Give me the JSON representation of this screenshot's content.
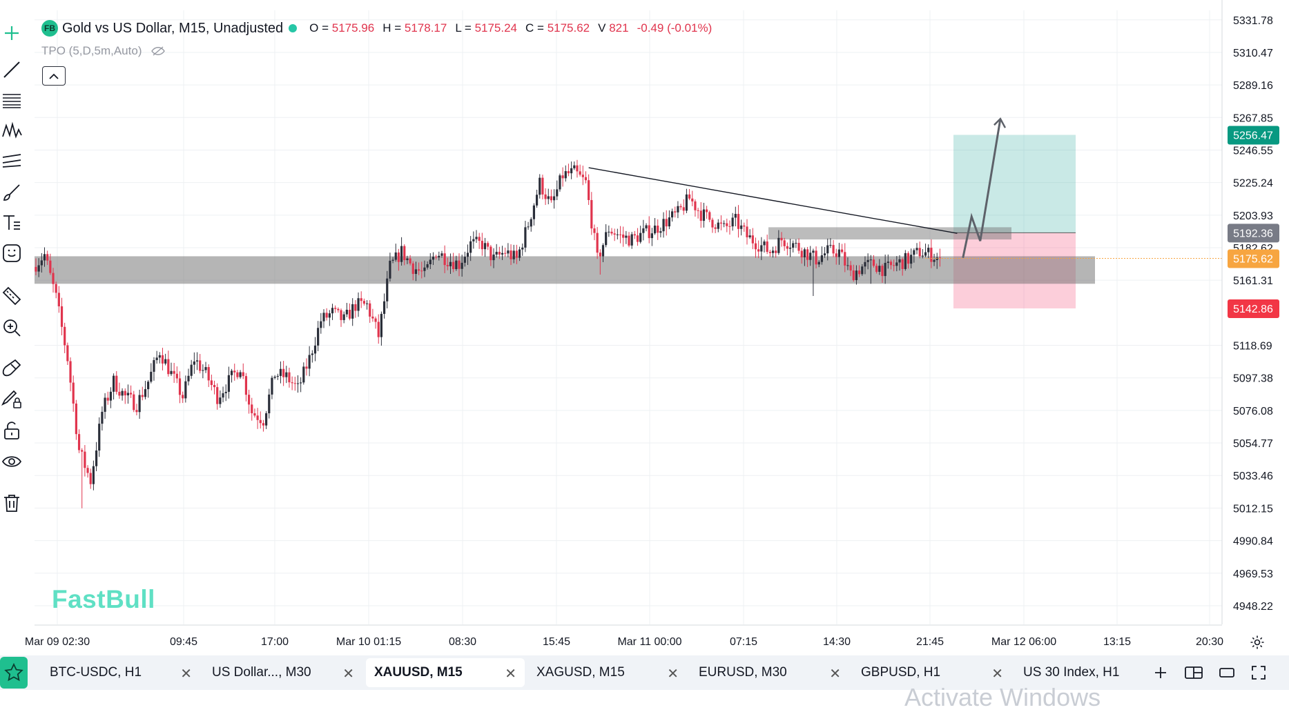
{
  "header": {
    "logo_text": "FB",
    "title": "Gold vs US Dollar, M15, Unadjusted",
    "ohlc": [
      {
        "key": "O =",
        "value": "5175.96"
      },
      {
        "key": "H =",
        "value": "5178.17"
      },
      {
        "key": "L =",
        "value": "5175.24"
      },
      {
        "key": "C =",
        "value": "5175.62"
      },
      {
        "key": "V",
        "value": "821"
      }
    ],
    "change": "-0.49 (-0.01%)",
    "indicator": "TPO (5,D,5m,Auto)"
  },
  "watermark": "FastBull",
  "overlay_text": "Activate Windows",
  "colors": {
    "up": "#2a2e39",
    "down": "#e0344d",
    "target_zone": "#26a69a",
    "stop_zone": "#f23c6a",
    "current_price": "#f7a540",
    "target_label": "#089981",
    "stop_label": "#f23645",
    "entry_label": "#787b86"
  },
  "chart_data": {
    "type": "candlestick",
    "symbol": "XAUUSD",
    "timeframe": "M15",
    "y_ticks": [
      "5331.78",
      "5310.47",
      "5289.16",
      "5267.85",
      "5246.55",
      "5225.24",
      "5203.93",
      "5182.62",
      "5161.31",
      "5118.69",
      "5097.38",
      "5076.08",
      "5054.77",
      "5033.46",
      "5012.15",
      "4990.84",
      "4969.53",
      "4948.22"
    ],
    "ylim": [
      4936,
      5338
    ],
    "x_ticks": [
      "Mar 09 02:30",
      "09:45",
      "17:00",
      "Mar 10 01:15",
      "08:30",
      "15:45",
      "Mar 11 00:00",
      "07:15",
      "14:30",
      "21:45",
      "Mar 12 06:00",
      "13:15",
      "20:30"
    ],
    "price_labels": [
      {
        "name": "target",
        "value": "5256.47"
      },
      {
        "name": "entry",
        "value": "5192.36"
      },
      {
        "name": "current",
        "value": "5175.62"
      },
      {
        "name": "stop",
        "value": "5142.86"
      }
    ],
    "price_path_anchors": [
      [
        0,
        5170
      ],
      [
        4,
        5178
      ],
      [
        8,
        5150
      ],
      [
        12,
        5110
      ],
      [
        16,
        5050
      ],
      [
        20,
        5030
      ],
      [
        24,
        5075
      ],
      [
        28,
        5095
      ],
      [
        32,
        5085
      ],
      [
        36,
        5080
      ],
      [
        40,
        5095
      ],
      [
        44,
        5115
      ],
      [
        48,
        5100
      ],
      [
        52,
        5085
      ],
      [
        56,
        5110
      ],
      [
        60,
        5100
      ],
      [
        64,
        5085
      ],
      [
        68,
        5095
      ],
      [
        72,
        5105
      ],
      [
        76,
        5075
      ],
      [
        80,
        5070
      ],
      [
        84,
        5100
      ],
      [
        88,
        5098
      ],
      [
        92,
        5090
      ],
      [
        96,
        5110
      ],
      [
        100,
        5135
      ],
      [
        104,
        5140
      ],
      [
        108,
        5135
      ],
      [
        112,
        5145
      ],
      [
        116,
        5145
      ],
      [
        120,
        5125
      ],
      [
        124,
        5170
      ],
      [
        128,
        5180
      ],
      [
        132,
        5170
      ],
      [
        136,
        5165
      ],
      [
        140,
        5180
      ],
      [
        144,
        5175
      ],
      [
        148,
        5172
      ],
      [
        152,
        5185
      ],
      [
        156,
        5185
      ],
      [
        160,
        5175
      ],
      [
        164,
        5180
      ],
      [
        168,
        5175
      ],
      [
        172,
        5198
      ],
      [
        176,
        5225
      ],
      [
        180,
        5210
      ],
      [
        184,
        5230
      ],
      [
        188,
        5232
      ],
      [
        192,
        5225
      ],
      [
        196,
        5175
      ],
      [
        200,
        5195
      ],
      [
        204,
        5190
      ],
      [
        208,
        5188
      ],
      [
        212,
        5192
      ],
      [
        216,
        5195
      ],
      [
        220,
        5200
      ],
      [
        224,
        5205
      ],
      [
        228,
        5215
      ],
      [
        232,
        5205
      ],
      [
        236,
        5200
      ],
      [
        240,
        5195
      ],
      [
        244,
        5200
      ],
      [
        248,
        5190
      ],
      [
        252,
        5185
      ],
      [
        256,
        5180
      ],
      [
        260,
        5188
      ],
      [
        264,
        5185
      ],
      [
        268,
        5180
      ],
      [
        272,
        5175
      ],
      [
        276,
        5180
      ],
      [
        280,
        5180
      ],
      [
        284,
        5165
      ],
      [
        288,
        5170
      ],
      [
        292,
        5172
      ],
      [
        296,
        5168
      ],
      [
        300,
        5172
      ],
      [
        304,
        5175
      ],
      [
        308,
        5180
      ],
      [
        312,
        5178
      ],
      [
        314,
        5176
      ]
    ],
    "special_wicks": [
      {
        "index": 16,
        "low": 5012
      },
      {
        "index": 196,
        "low": 5165
      },
      {
        "index": 270,
        "low": 5151
      },
      {
        "index": 290,
        "low": 5159
      }
    ],
    "zones": [
      {
        "name": "support",
        "y_top": 5177,
        "y_bottom": 5159
      },
      {
        "name": "resistance",
        "y_top": 5196,
        "y_bottom": 5188
      },
      {
        "name": "target",
        "y_top": 5256.47,
        "y_bottom": 5192.36
      },
      {
        "name": "stop",
        "y_top": 5192.36,
        "y_bottom": 5142.86
      }
    ],
    "trendline": {
      "from_index": 192,
      "from_price": 5235,
      "to_index": 320,
      "to_price": 5192
    },
    "projection": [
      [
        322,
        5176
      ],
      [
        325,
        5203
      ],
      [
        328,
        5187
      ],
      [
        335,
        5267
      ]
    ],
    "grid": true
  },
  "tabs": [
    {
      "label": "BTC-USDC, H1",
      "active": false
    },
    {
      "label": "US Dollar..., M30",
      "active": false
    },
    {
      "label": "XAUUSD, M15",
      "active": true
    },
    {
      "label": "XAGUSD, M15",
      "active": false
    },
    {
      "label": "EURUSD, M30",
      "active": false
    },
    {
      "label": "GBPUSD, H1",
      "active": false
    },
    {
      "label": "US 30 Index, H1",
      "active": false
    }
  ],
  "tab_close_symbol": "✕",
  "toolbar": [
    "crosshair-icon",
    "trend-line-icon",
    "fib-icon",
    "pattern-icon",
    "channel-icon",
    "brush-icon",
    "text-icon",
    "emoji-icon",
    "ruler-icon",
    "zoom-icon",
    "magnet-icon",
    "draw-lock-icon",
    "lock-icon",
    "eye-icon",
    "trash-icon"
  ]
}
